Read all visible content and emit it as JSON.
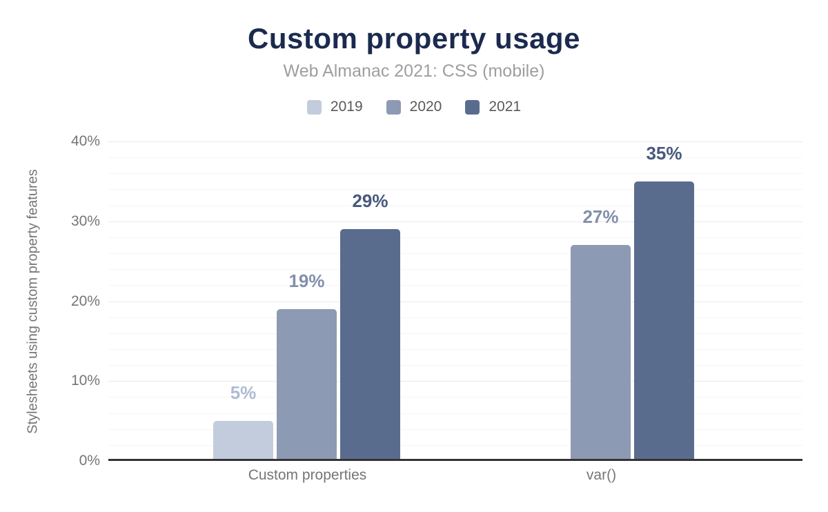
{
  "chart_data": {
    "type": "bar",
    "title": "Custom property usage",
    "subtitle": "Web Almanac 2021: CSS (mobile)",
    "categories": [
      "Custom properties",
      "var()"
    ],
    "series": [
      {
        "name": "2019",
        "color": "#c2ccdc",
        "label_color": "#aebcd2",
        "values": [
          5,
          null
        ]
      },
      {
        "name": "2020",
        "color": "#8d9ab3",
        "label_color": "#8290ac",
        "values": [
          19,
          27
        ]
      },
      {
        "name": "2021",
        "color": "#5a6c8e",
        "label_color": "#47597d",
        "values": [
          29,
          35
        ]
      }
    ],
    "xlabel": "",
    "ylabel": "Stylesheets using custom property features",
    "yticks": [
      "0%",
      "10%",
      "20%",
      "30%",
      "40%"
    ],
    "ylim": [
      0,
      40
    ],
    "grid": true,
    "grid_minor_step": 2,
    "grid_major_step": 10,
    "legend_position": "top",
    "value_suffix": "%",
    "annotations": [
      "5%",
      "19%",
      "29%",
      "27%",
      "35%"
    ],
    "colors": {
      "title": "#1b2a4e",
      "subtitle_text": "#9e9e9e",
      "axis_text": "#757575",
      "axis_line": "#333333",
      "major_gridline": "#e8e8e8",
      "minor_gridline": "#f5f5f5"
    }
  }
}
